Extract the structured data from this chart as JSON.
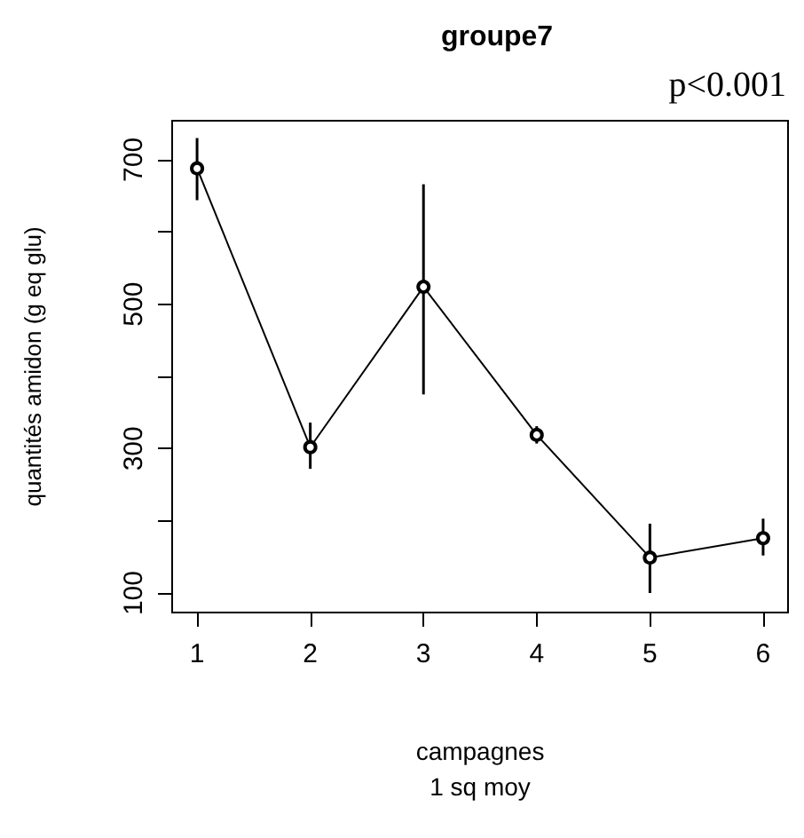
{
  "chart_data": {
    "type": "line",
    "title": "groupe7",
    "xlabel": "campagnes\n1 sq moy",
    "ylabel": "quantités amidon (g eq glu)",
    "annotations": [
      "p<0.001"
    ],
    "x": [
      1,
      2,
      3,
      4,
      5,
      6
    ],
    "series": [
      {
        "color": "#000000",
        "values": [
          688,
          302,
          524,
          319,
          149,
          176
        ],
        "errors": [
          [
            644,
            730
          ],
          [
            272,
            336
          ],
          [
            375,
            666
          ],
          [
            307,
            331
          ],
          [
            100,
            196
          ],
          [
            152,
            203
          ]
        ]
      }
    ],
    "xlim": [
      0.78,
      6.22
    ],
    "xticks": [
      1,
      2,
      3,
      4,
      5,
      6
    ],
    "ylim": [
      73,
      754
    ],
    "yticks": [
      100,
      {
        "value": 200,
        "label": null
      },
      300,
      {
        "value": 400,
        "label": null
      },
      500,
      {
        "value": 600,
        "label": null
      },
      700
    ],
    "grid": false,
    "marker": "circle",
    "line_style": "solid"
  }
}
